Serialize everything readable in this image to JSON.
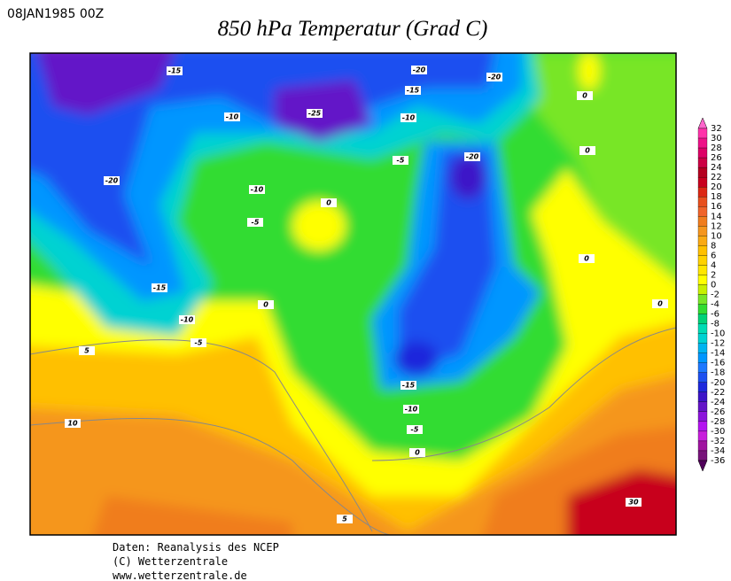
{
  "header": {
    "date": "08JAN1985 00Z",
    "title": "850 hPa Temperatur (Grad C)"
  },
  "colorbar": {
    "labels": [
      32,
      30,
      28,
      26,
      24,
      22,
      20,
      18,
      16,
      14,
      12,
      10,
      8,
      6,
      4,
      2,
      0,
      -2,
      -4,
      -6,
      -8,
      -10,
      -12,
      -14,
      -16,
      -18,
      -20,
      -22,
      -24,
      -26,
      -28,
      -30,
      -32,
      -34,
      -36
    ],
    "colors": [
      "#ff66cc",
      "#ff33aa",
      "#ee1188",
      "#dd0066",
      "#cc0044",
      "#b40020",
      "#c8001e",
      "#dc2814",
      "#e8501e",
      "#f0642a",
      "#f07d1e",
      "#f5961e",
      "#faaa14",
      "#ffc000",
      "#ffd200",
      "#ffe600",
      "#ffff00",
      "#c8f000",
      "#78e628",
      "#32dc32",
      "#00d278",
      "#00dcb4",
      "#00d2d2",
      "#00b4f0",
      "#0096ff",
      "#1e78ff",
      "#1e50f0",
      "#1e28dc",
      "#3c14c8",
      "#6414c8",
      "#8c14dc",
      "#b414f0",
      "#c81edc",
      "#a014a0",
      "#78147a",
      "#50005a"
    ]
  },
  "contour_labels": [
    -15,
    -20,
    -20,
    -15,
    -25,
    -10,
    -10,
    0,
    -5,
    -20,
    0,
    -20,
    -10,
    0,
    -5,
    0,
    -15,
    0,
    0,
    -10,
    -5,
    5,
    -15,
    -10,
    10,
    -5,
    0,
    5,
    30
  ],
  "footer": [
    "Daten: Reanalysis des NCEP",
    "(C) Wetterzentrale",
    "www.wetterzentrale.de"
  ]
}
